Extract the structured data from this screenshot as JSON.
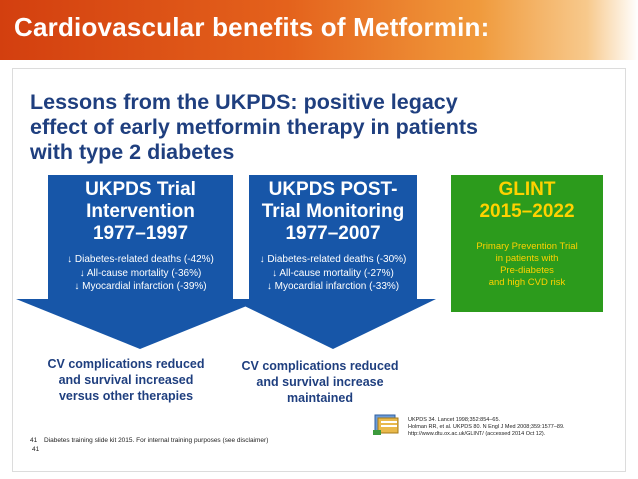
{
  "header": {
    "title": "Cardiovascular benefits of Metformin:"
  },
  "slide": {
    "heading": [
      "Lessons from the UKPDS: positive legacy",
      "effect of early metformin therapy in patients",
      "with type 2 diabetes"
    ],
    "boxes": [
      {
        "title_lines": [
          "UKPDS Trial",
          "Intervention",
          "1977–1997"
        ],
        "stats": [
          "↓ Diabetes-related deaths (-42%)",
          "↓ All-cause mortality (-36%)",
          "↓ Myocardial infarction (-39%)"
        ]
      },
      {
        "title_lines": [
          "UKPDS POST-",
          "Trial Monitoring",
          "1977–2007"
        ],
        "stats": [
          "↓ Diabetes-related deaths (-30%)",
          "↓ All-cause mortality (-27%)",
          "↓ Myocardial infarction (-33%)"
        ]
      },
      {
        "title_lines": [
          "GLINT",
          "2015–2022"
        ],
        "body_lines": [
          "Primary Prevention Trial",
          "in patients with",
          "Pre-diabetes",
          "and high CVD risk"
        ]
      }
    ],
    "captions": [
      [
        "CV complications reduced",
        "and survival increased",
        "versus other therapies"
      ],
      [
        "CV complications reduced",
        "and survival increase",
        "maintained"
      ]
    ],
    "references": [
      "UKPDS 34. Lancet 1998;352:854–65.",
      "Holman RR, et al. UKPDS 80. N Engl J Med 2008;359:1577–89.",
      "http://www.dtu.ox.ac.uk/GLINT/ (accessed 2014 Oct 12)."
    ],
    "footnote_number": "41",
    "footnote_text": "Diabetes training slide kit 2015. For internal training purposes (see disclaimer)",
    "page_number": "41"
  }
}
